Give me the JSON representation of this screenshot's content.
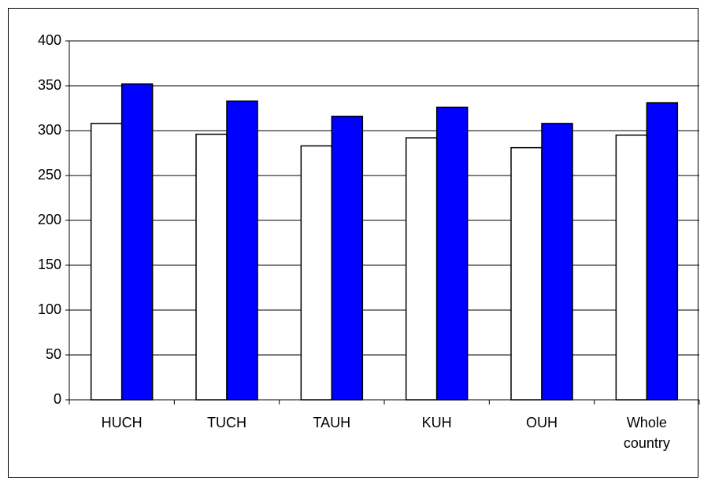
{
  "chart_data": {
    "type": "bar",
    "categories": [
      "HUCH",
      "TUCH",
      "TAUH",
      "KUH",
      "OUH",
      "Whole country"
    ],
    "series": [
      {
        "color": "#ffffff",
        "values": [
          308,
          296,
          283,
          292,
          281,
          295
        ]
      },
      {
        "color": "#0000ff",
        "values": [
          352,
          333,
          316,
          326,
          308,
          331
        ]
      }
    ],
    "ylim": [
      0,
      400
    ],
    "yticks": [
      0,
      50,
      100,
      150,
      200,
      250,
      300,
      350,
      400
    ],
    "grid": true
  }
}
